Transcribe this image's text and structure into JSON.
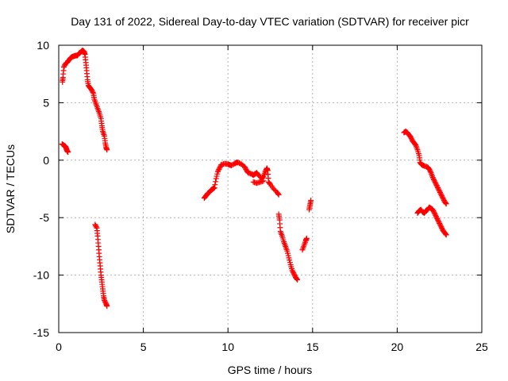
{
  "chart_data": {
    "type": "scatter",
    "title": "Day 131 of 2022, Sidereal Day-to-day VTEC variation (SDTVAR) for receiver picr",
    "xlabel": "GPS time / hours",
    "ylabel": "SDTVAR / TECUs",
    "xlim": [
      0,
      25
    ],
    "ylim": [
      -15,
      10
    ],
    "xticks": [
      0,
      5,
      10,
      15,
      20,
      25
    ],
    "yticks": [
      -15,
      -10,
      -5,
      0,
      5,
      10
    ],
    "grid": true,
    "marker": "plus",
    "color": "#ff0000",
    "segments": [
      {
        "name": "arc-1",
        "points": [
          [
            0.22,
            6.8
          ],
          [
            0.25,
            7.2
          ],
          [
            0.3,
            8.1
          ],
          [
            0.4,
            8.4
          ],
          [
            0.5,
            8.5
          ],
          [
            0.6,
            8.7
          ],
          [
            0.7,
            8.9
          ],
          [
            0.8,
            9.0
          ],
          [
            0.9,
            9.05
          ],
          [
            1.0,
            9.1
          ],
          [
            1.1,
            9.1
          ],
          [
            1.2,
            9.3
          ],
          [
            1.3,
            9.4
          ],
          [
            1.4,
            9.55
          ],
          [
            1.5,
            9.45
          ],
          [
            1.55,
            9.2
          ],
          [
            1.6,
            8.5
          ],
          [
            1.65,
            7.8
          ],
          [
            1.7,
            7.0
          ],
          [
            1.75,
            6.5
          ],
          [
            1.85,
            6.3
          ],
          [
            1.95,
            6.1
          ],
          [
            2.05,
            5.8
          ],
          [
            2.1,
            5.3
          ],
          [
            2.2,
            4.9
          ],
          [
            2.3,
            4.5
          ],
          [
            2.4,
            4.1
          ],
          [
            2.5,
            3.6
          ],
          [
            2.55,
            3.0
          ],
          [
            2.6,
            2.5
          ],
          [
            2.7,
            2.1
          ],
          [
            2.75,
            1.5
          ],
          [
            2.8,
            1.1
          ],
          [
            2.85,
            0.9
          ]
        ]
      },
      {
        "name": "arc-2",
        "points": [
          [
            0.2,
            1.4
          ],
          [
            0.3,
            1.3
          ],
          [
            0.4,
            1.2
          ],
          [
            0.45,
            1.0
          ],
          [
            0.5,
            0.8
          ],
          [
            0.55,
            0.7
          ]
        ]
      },
      {
        "name": "arc-3",
        "points": [
          [
            2.15,
            -5.6
          ],
          [
            2.25,
            -5.9
          ],
          [
            2.3,
            -6.6
          ],
          [
            2.35,
            -7.5
          ],
          [
            2.4,
            -8.4
          ],
          [
            2.45,
            -9.2
          ],
          [
            2.5,
            -10.0
          ],
          [
            2.55,
            -10.6
          ],
          [
            2.6,
            -11.2
          ],
          [
            2.65,
            -11.8
          ],
          [
            2.7,
            -12.2
          ],
          [
            2.8,
            -12.5
          ],
          [
            2.85,
            -12.7
          ]
        ]
      },
      {
        "name": "arc-4",
        "points": [
          [
            8.6,
            -3.3
          ],
          [
            8.7,
            -3.1
          ],
          [
            8.8,
            -2.9
          ],
          [
            8.9,
            -2.8
          ],
          [
            9.0,
            -2.6
          ],
          [
            9.1,
            -2.5
          ],
          [
            9.2,
            -2.4
          ],
          [
            9.3,
            -1.6
          ],
          [
            9.4,
            -1.0
          ],
          [
            9.5,
            -0.7
          ],
          [
            9.6,
            -0.4
          ],
          [
            9.8,
            -0.3
          ],
          [
            10.0,
            -0.35
          ],
          [
            10.1,
            -0.4
          ],
          [
            10.2,
            -0.45
          ],
          [
            10.4,
            -0.3
          ],
          [
            10.5,
            -0.2
          ],
          [
            10.6,
            -0.2
          ],
          [
            10.8,
            -0.35
          ],
          [
            11.0,
            -0.6
          ],
          [
            11.1,
            -0.9
          ],
          [
            11.2,
            -1.1
          ],
          [
            11.4,
            -1.2
          ],
          [
            11.5,
            -1.3
          ],
          [
            11.6,
            -1.2
          ],
          [
            11.7,
            -1.1
          ],
          [
            11.8,
            -1.3
          ],
          [
            12.0,
            -1.6
          ],
          [
            12.1,
            -1.4
          ],
          [
            12.2,
            -1.0
          ],
          [
            12.3,
            -0.7
          ],
          [
            12.35,
            -0.9
          ],
          [
            12.4,
            -1.9
          ],
          [
            12.5,
            -2.1
          ],
          [
            12.7,
            -2.5
          ],
          [
            12.9,
            -2.8
          ],
          [
            13.0,
            -3.0
          ]
        ]
      },
      {
        "name": "arc-5",
        "points": [
          [
            11.5,
            -1.9
          ],
          [
            11.7,
            -2.0
          ],
          [
            11.9,
            -1.9
          ],
          [
            12.1,
            -1.8
          ]
        ]
      },
      {
        "name": "arc-6",
        "points": [
          [
            13.0,
            -4.7
          ],
          [
            13.05,
            -5.2
          ],
          [
            13.1,
            -6.2
          ],
          [
            13.2,
            -6.6
          ],
          [
            13.3,
            -7.1
          ],
          [
            13.4,
            -7.5
          ],
          [
            13.5,
            -7.9
          ],
          [
            13.6,
            -8.5
          ],
          [
            13.7,
            -9.1
          ],
          [
            13.8,
            -9.6
          ],
          [
            13.9,
            -9.9
          ],
          [
            14.0,
            -10.2
          ],
          [
            14.1,
            -10.4
          ]
        ]
      },
      {
        "name": "arc-7",
        "points": [
          [
            14.4,
            -7.8
          ],
          [
            14.5,
            -7.4
          ],
          [
            14.6,
            -7.0
          ],
          [
            14.65,
            -6.8
          ]
        ]
      },
      {
        "name": "arc-8",
        "points": [
          [
            14.8,
            -4.3
          ],
          [
            14.85,
            -3.9
          ],
          [
            14.9,
            -3.5
          ]
        ]
      },
      {
        "name": "arc-9",
        "points": [
          [
            20.4,
            2.4
          ],
          [
            20.5,
            2.5
          ],
          [
            20.6,
            2.4
          ],
          [
            20.7,
            2.2
          ],
          [
            20.8,
            2.0
          ],
          [
            20.9,
            1.7
          ],
          [
            21.0,
            1.5
          ],
          [
            21.1,
            1.3
          ],
          [
            21.2,
            0.9
          ],
          [
            21.3,
            0.4
          ],
          [
            21.35,
            -0.2
          ],
          [
            21.45,
            -0.4
          ],
          [
            21.6,
            -0.5
          ],
          [
            21.8,
            -0.6
          ],
          [
            21.9,
            -0.8
          ],
          [
            22.0,
            -1.1
          ],
          [
            22.1,
            -1.5
          ],
          [
            22.2,
            -1.8
          ],
          [
            22.3,
            -2.1
          ],
          [
            22.4,
            -2.4
          ],
          [
            22.5,
            -2.7
          ],
          [
            22.6,
            -3.0
          ],
          [
            22.7,
            -3.3
          ],
          [
            22.8,
            -3.6
          ],
          [
            22.9,
            -3.8
          ]
        ]
      },
      {
        "name": "arc-10",
        "points": [
          [
            21.2,
            -4.6
          ],
          [
            21.3,
            -4.4
          ],
          [
            21.4,
            -4.3
          ],
          [
            21.5,
            -4.5
          ],
          [
            21.6,
            -4.6
          ],
          [
            21.7,
            -4.4
          ],
          [
            21.8,
            -4.3
          ],
          [
            21.9,
            -4.1
          ],
          [
            22.0,
            -4.2
          ],
          [
            22.1,
            -4.3
          ],
          [
            22.2,
            -4.6
          ],
          [
            22.3,
            -4.9
          ],
          [
            22.4,
            -5.2
          ],
          [
            22.5,
            -5.5
          ],
          [
            22.6,
            -5.8
          ],
          [
            22.7,
            -6.1
          ],
          [
            22.8,
            -6.3
          ],
          [
            22.9,
            -6.5
          ]
        ]
      }
    ]
  }
}
